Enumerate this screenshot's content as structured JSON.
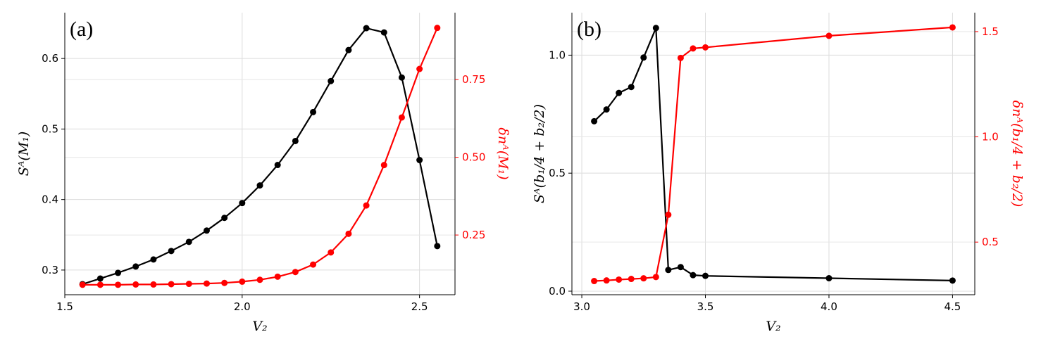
{
  "chart_data": [
    {
      "type": "line",
      "panel_label": "(a)",
      "xlabel": "V₂",
      "ylabel": "Sᴬ(M₁)",
      "y2label": "δnᴬ(M₁)",
      "xlim": [
        1.5,
        2.6
      ],
      "ylim": [
        0.265,
        0.665
      ],
      "y2lim": [
        0.058,
        0.965
      ],
      "xticks": [
        {
          "v": 1.5,
          "t": "1.5"
        },
        {
          "v": 2.0,
          "t": "2.0"
        },
        {
          "v": 2.5,
          "t": "2.5"
        }
      ],
      "yticks": [
        {
          "v": 0.3,
          "t": "0.3"
        },
        {
          "v": 0.4,
          "t": "0.4"
        },
        {
          "v": 0.5,
          "t": "0.5"
        },
        {
          "v": 0.6,
          "t": "0.6"
        }
      ],
      "y2ticks": [
        {
          "v": 0.25,
          "t": "0.25"
        },
        {
          "v": 0.5,
          "t": "0.50"
        },
        {
          "v": 0.75,
          "t": "0.75"
        }
      ],
      "grid": true,
      "series": [
        {
          "color": "#000000",
          "axis": "left",
          "x": [
            1.55,
            1.6,
            1.65,
            1.7,
            1.75,
            1.8,
            1.85,
            1.9,
            1.95,
            2.0,
            2.05,
            2.1,
            2.15,
            2.2,
            2.25,
            2.3,
            2.35,
            2.4,
            2.45,
            2.5,
            2.55
          ],
          "y": [
            0.28,
            0.288,
            0.296,
            0.305,
            0.315,
            0.327,
            0.34,
            0.356,
            0.374,
            0.395,
            0.42,
            0.449,
            0.483,
            0.524,
            0.568,
            0.612,
            0.643,
            0.637,
            0.573,
            0.456,
            0.334
          ]
        },
        {
          "color": "#ff0000",
          "axis": "right",
          "x": [
            1.55,
            1.6,
            1.65,
            1.7,
            1.75,
            1.8,
            1.85,
            1.9,
            1.95,
            2.0,
            2.05,
            2.1,
            2.15,
            2.2,
            2.25,
            2.3,
            2.35,
            2.4,
            2.45,
            2.5,
            2.55
          ],
          "y": [
            0.09,
            0.09,
            0.09,
            0.091,
            0.091,
            0.092,
            0.093,
            0.094,
            0.096,
            0.1,
            0.106,
            0.116,
            0.131,
            0.155,
            0.194,
            0.254,
            0.345,
            0.475,
            0.628,
            0.784,
            0.916
          ]
        }
      ]
    },
    {
      "type": "line",
      "panel_label": "(b)",
      "xlabel": "V₂",
      "ylabel": "Sᴬ(b₁/4 + b₂/2)",
      "y2label": "δnᴬ(b₁/4 + b₂/2)",
      "xlim": [
        2.96,
        4.59
      ],
      "ylim": [
        -0.015,
        1.18
      ],
      "y2lim": [
        0.25,
        1.59
      ],
      "xticks": [
        {
          "v": 3.0,
          "t": "3.0"
        },
        {
          "v": 3.5,
          "t": "3.5"
        },
        {
          "v": 4.0,
          "t": "4.0"
        },
        {
          "v": 4.5,
          "t": "4.5"
        }
      ],
      "yticks": [
        {
          "v": 0.0,
          "t": "0.0"
        },
        {
          "v": 0.5,
          "t": "0.5"
        },
        {
          "v": 1.0,
          "t": "1.0"
        }
      ],
      "y2ticks": [
        {
          "v": 0.5,
          "t": "0.5"
        },
        {
          "v": 1.0,
          "t": "1.0"
        },
        {
          "v": 1.5,
          "t": "1.5"
        }
      ],
      "grid": true,
      "series": [
        {
          "color": "#000000",
          "axis": "left",
          "x": [
            3.05,
            3.1,
            3.15,
            3.2,
            3.25,
            3.3,
            3.35,
            3.4,
            3.45,
            3.5,
            4.0,
            4.5
          ],
          "y": [
            0.72,
            0.77,
            0.84,
            0.865,
            0.99,
            1.115,
            0.09,
            0.102,
            0.068,
            0.065,
            0.055,
            0.045
          ]
        },
        {
          "color": "#ff0000",
          "axis": "right",
          "x": [
            3.05,
            3.1,
            3.15,
            3.2,
            3.25,
            3.3,
            3.35,
            3.4,
            3.45,
            3.5,
            4.0,
            4.5
          ],
          "y": [
            0.315,
            0.318,
            0.322,
            0.325,
            0.328,
            0.334,
            0.63,
            1.375,
            1.42,
            1.425,
            1.48,
            1.52
          ]
        }
      ]
    }
  ]
}
